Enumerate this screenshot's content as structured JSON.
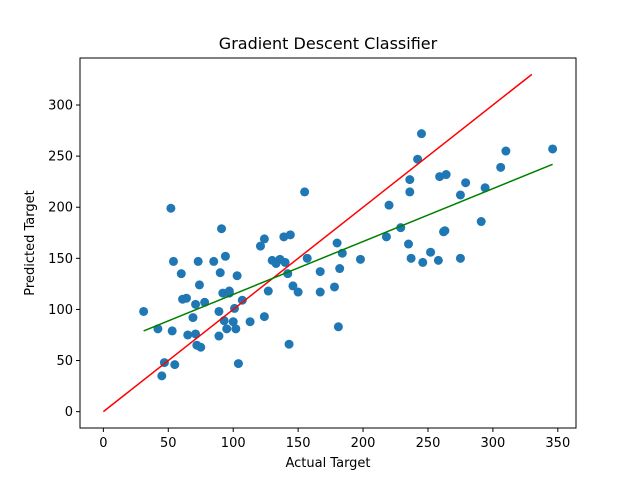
{
  "chart_data": {
    "type": "scatter",
    "title": "Gradient Descent Classifier",
    "xlabel": "Actual Target",
    "ylabel": "Predicted Target",
    "xlim": [
      -18,
      364
    ],
    "ylim": [
      -16,
      346
    ],
    "xticks": [
      0,
      50,
      100,
      150,
      200,
      250,
      300,
      350
    ],
    "yticks": [
      0,
      50,
      100,
      150,
      200,
      250,
      300
    ],
    "grid": false,
    "colors": {
      "points": "#1f77b4",
      "identity_line": "#ff0000",
      "fit_line": "#008000"
    },
    "identity_line": {
      "x": [
        0,
        330
      ],
      "y": [
        0,
        330
      ]
    },
    "fit_line": {
      "x": [
        31,
        346
      ],
      "y": [
        79,
        242
      ]
    },
    "points": [
      {
        "x": 31,
        "y": 98
      },
      {
        "x": 42,
        "y": 81
      },
      {
        "x": 45,
        "y": 35
      },
      {
        "x": 47,
        "y": 48
      },
      {
        "x": 52,
        "y": 199
      },
      {
        "x": 53,
        "y": 79
      },
      {
        "x": 54,
        "y": 147
      },
      {
        "x": 55,
        "y": 46
      },
      {
        "x": 60,
        "y": 135
      },
      {
        "x": 61,
        "y": 110
      },
      {
        "x": 64,
        "y": 111
      },
      {
        "x": 65,
        "y": 75
      },
      {
        "x": 69,
        "y": 92
      },
      {
        "x": 71,
        "y": 105
      },
      {
        "x": 71,
        "y": 76
      },
      {
        "x": 72,
        "y": 65
      },
      {
        "x": 73,
        "y": 147
      },
      {
        "x": 74,
        "y": 124
      },
      {
        "x": 75,
        "y": 63
      },
      {
        "x": 78,
        "y": 107
      },
      {
        "x": 85,
        "y": 147
      },
      {
        "x": 89,
        "y": 74
      },
      {
        "x": 89,
        "y": 98
      },
      {
        "x": 90,
        "y": 136
      },
      {
        "x": 91,
        "y": 179
      },
      {
        "x": 92,
        "y": 116
      },
      {
        "x": 93,
        "y": 89
      },
      {
        "x": 94,
        "y": 152
      },
      {
        "x": 95,
        "y": 81
      },
      {
        "x": 97,
        "y": 116
      },
      {
        "x": 97,
        "y": 118
      },
      {
        "x": 100,
        "y": 88
      },
      {
        "x": 101,
        "y": 101
      },
      {
        "x": 102,
        "y": 81
      },
      {
        "x": 103,
        "y": 133
      },
      {
        "x": 104,
        "y": 47
      },
      {
        "x": 107,
        "y": 109
      },
      {
        "x": 113,
        "y": 88
      },
      {
        "x": 121,
        "y": 162
      },
      {
        "x": 124,
        "y": 93
      },
      {
        "x": 124,
        "y": 169
      },
      {
        "x": 127,
        "y": 118
      },
      {
        "x": 130,
        "y": 148
      },
      {
        "x": 133,
        "y": 145
      },
      {
        "x": 136,
        "y": 149
      },
      {
        "x": 139,
        "y": 171
      },
      {
        "x": 140,
        "y": 146
      },
      {
        "x": 142,
        "y": 135
      },
      {
        "x": 143,
        "y": 66
      },
      {
        "x": 144,
        "y": 173
      },
      {
        "x": 146,
        "y": 123
      },
      {
        "x": 150,
        "y": 117
      },
      {
        "x": 155,
        "y": 215
      },
      {
        "x": 157,
        "y": 150
      },
      {
        "x": 167,
        "y": 137
      },
      {
        "x": 167,
        "y": 117
      },
      {
        "x": 178,
        "y": 122
      },
      {
        "x": 180,
        "y": 165
      },
      {
        "x": 181,
        "y": 83
      },
      {
        "x": 182,
        "y": 140
      },
      {
        "x": 184,
        "y": 155
      },
      {
        "x": 198,
        "y": 149
      },
      {
        "x": 218,
        "y": 171
      },
      {
        "x": 220,
        "y": 202
      },
      {
        "x": 229,
        "y": 180
      },
      {
        "x": 235,
        "y": 164
      },
      {
        "x": 236,
        "y": 227
      },
      {
        "x": 236,
        "y": 215
      },
      {
        "x": 237,
        "y": 150
      },
      {
        "x": 242,
        "y": 247
      },
      {
        "x": 245,
        "y": 272
      },
      {
        "x": 246,
        "y": 146
      },
      {
        "x": 252,
        "y": 156
      },
      {
        "x": 258,
        "y": 148
      },
      {
        "x": 259,
        "y": 230
      },
      {
        "x": 262,
        "y": 176
      },
      {
        "x": 263,
        "y": 177
      },
      {
        "x": 264,
        "y": 232
      },
      {
        "x": 275,
        "y": 150
      },
      {
        "x": 275,
        "y": 212
      },
      {
        "x": 279,
        "y": 224
      },
      {
        "x": 291,
        "y": 186
      },
      {
        "x": 294,
        "y": 219
      },
      {
        "x": 306,
        "y": 239
      },
      {
        "x": 310,
        "y": 255
      },
      {
        "x": 346,
        "y": 257
      }
    ]
  }
}
